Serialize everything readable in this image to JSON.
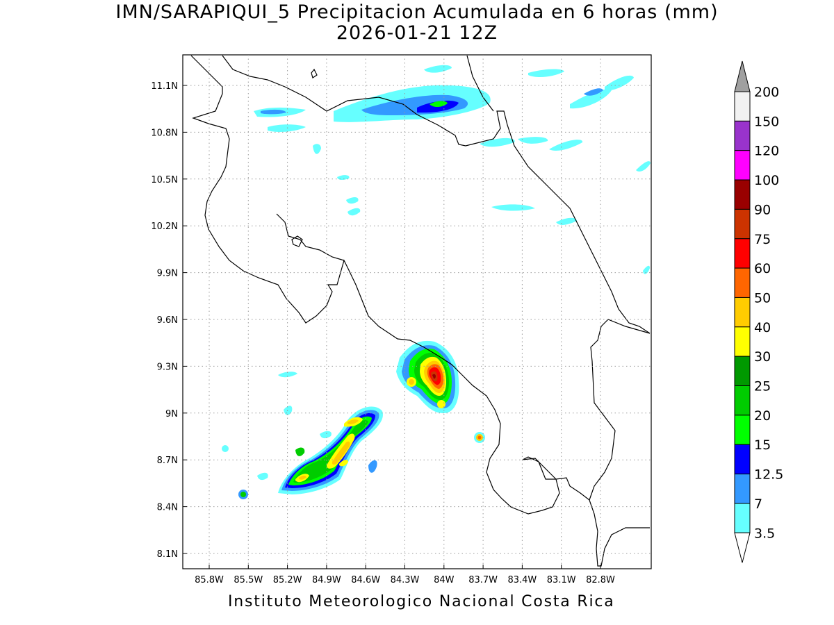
{
  "title": {
    "line1": "IMN/SARAPIQUI_5 Precipitacion Acumulada en 6 horas (mm)",
    "line2": "2026-01-21 12Z"
  },
  "footer": "Instituto Meteorologico Nacional Costa Rica",
  "map": {
    "lon_range": [
      -85.97,
      -82.95
    ],
    "lat_range": [
      7.98,
      11.3
    ],
    "x_ticks": [
      "85.8W",
      "85.5W",
      "85.2W",
      "84.9W",
      "84.6W",
      "84.3W",
      "84W",
      "83.7W",
      "83.4W",
      "83.1W",
      "82.8W"
    ],
    "y_ticks": [
      "11.1N",
      "10.8N",
      "10.5N",
      "10.2N",
      "9.9N",
      "9.6N",
      "9.3N",
      "9N",
      "8.7N",
      "8.4N",
      "8.1N"
    ],
    "grid": "dotted"
  },
  "colorbar": {
    "labels": [
      "200",
      "150",
      "120",
      "100",
      "90",
      "75",
      "60",
      "50",
      "40",
      "30",
      "25",
      "20",
      "15",
      "12.5",
      "7",
      "3.5"
    ],
    "colors": [
      "#a0a0a0",
      "#f2f2f2",
      "#9933cc",
      "#ff00ff",
      "#990000",
      "#cc3300",
      "#ff0000",
      "#ff6600",
      "#ffcc00",
      "#ffff00",
      "#009900",
      "#00cc00",
      "#00ff00",
      "#0000ff",
      "#3399ff",
      "#66ffff"
    ]
  }
}
